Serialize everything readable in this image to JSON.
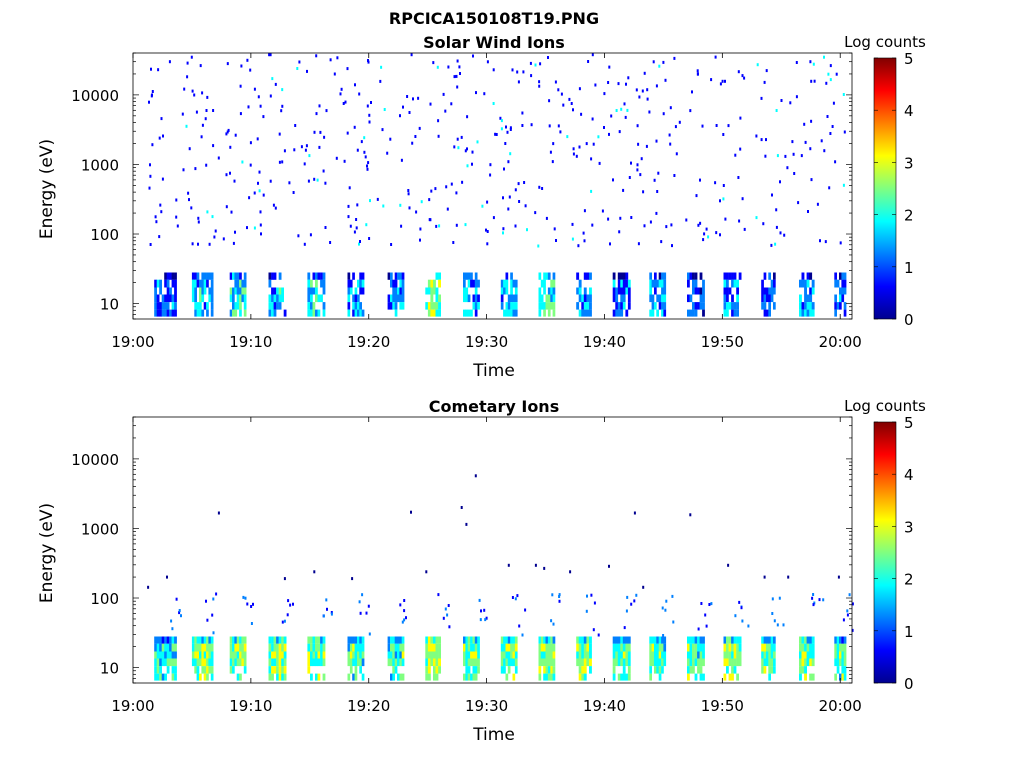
{
  "figure_title": "RPCICA150108T19.PNG",
  "colormap": [
    "#00008f",
    "#0000ff",
    "#0080ff",
    "#00ffff",
    "#80ff80",
    "#ffff00",
    "#ff8000",
    "#ff0000",
    "#800000"
  ],
  "chart_data": [
    {
      "type": "heatmap",
      "title": "Solar Wind Ions",
      "xlabel": "Time",
      "ylabel": "Energy (eV)",
      "x_ticks": [
        "19:00",
        "19:10",
        "19:20",
        "19:30",
        "19:40",
        "19:50",
        "20:00"
      ],
      "x_range_minutes": [
        0,
        61
      ],
      "y_scale": "log",
      "y_ticks": [
        "10",
        "100",
        "1000",
        "10000"
      ],
      "ylim": [
        6,
        40000
      ],
      "colorbar": {
        "label": "Log counts",
        "ticks": [
          "0",
          "1",
          "2",
          "3",
          "4",
          "5"
        ],
        "range": [
          0,
          5
        ]
      },
      "low_energy_bursts": [
        {
          "t": 1.8,
          "w": 1.9,
          "level": 1.0
        },
        {
          "t": 5.0,
          "w": 1.8,
          "level": 1.6
        },
        {
          "t": 8.2,
          "w": 1.4,
          "level": 1.8
        },
        {
          "t": 11.5,
          "w": 1.5,
          "level": 1.5
        },
        {
          "t": 14.8,
          "w": 1.5,
          "level": 1.7
        },
        {
          "t": 18.2,
          "w": 1.4,
          "level": 1.3
        },
        {
          "t": 21.6,
          "w": 1.4,
          "level": 1.5
        },
        {
          "t": 24.8,
          "w": 1.3,
          "level": 2.4
        },
        {
          "t": 28.0,
          "w": 1.4,
          "level": 1.4
        },
        {
          "t": 31.2,
          "w": 1.4,
          "level": 1.4
        },
        {
          "t": 34.4,
          "w": 1.4,
          "level": 2.0
        },
        {
          "t": 37.6,
          "w": 1.3,
          "level": 1.4
        },
        {
          "t": 40.7,
          "w": 1.5,
          "level": 1.0
        },
        {
          "t": 43.8,
          "w": 1.4,
          "level": 1.5
        },
        {
          "t": 47.0,
          "w": 1.5,
          "level": 0.9
        },
        {
          "t": 50.1,
          "w": 1.5,
          "level": 1.3
        },
        {
          "t": 53.3,
          "w": 1.2,
          "level": 1.0
        },
        {
          "t": 56.5,
          "w": 1.3,
          "level": 1.5
        },
        {
          "t": 59.5,
          "w": 1.0,
          "level": 1.3
        }
      ],
      "sparse_background": {
        "energy_min": 70,
        "energy_max": 40000,
        "typical_level": 0.4
      }
    },
    {
      "type": "heatmap",
      "title": "Cometary Ions",
      "xlabel": "Time",
      "ylabel": "Energy (eV)",
      "x_ticks": [
        "19:00",
        "19:10",
        "19:20",
        "19:30",
        "19:40",
        "19:50",
        "20:00"
      ],
      "x_range_minutes": [
        0,
        61
      ],
      "y_scale": "log",
      "y_ticks": [
        "10",
        "100",
        "1000",
        "10000"
      ],
      "ylim": [
        6,
        40000
      ],
      "colorbar": {
        "label": "Log counts",
        "ticks": [
          "0",
          "1",
          "2",
          "3",
          "4",
          "5"
        ],
        "range": [
          0,
          5
        ]
      },
      "low_energy_bursts": [
        {
          "t": 1.8,
          "w": 1.9,
          "level": 2.0
        },
        {
          "t": 5.0,
          "w": 1.8,
          "level": 2.5
        },
        {
          "t": 8.2,
          "w": 1.4,
          "level": 2.5
        },
        {
          "t": 11.5,
          "w": 1.5,
          "level": 2.4
        },
        {
          "t": 14.8,
          "w": 1.5,
          "level": 2.3
        },
        {
          "t": 18.2,
          "w": 1.4,
          "level": 2.2
        },
        {
          "t": 21.6,
          "w": 1.4,
          "level": 2.2
        },
        {
          "t": 24.8,
          "w": 1.3,
          "level": 2.8
        },
        {
          "t": 28.0,
          "w": 1.4,
          "level": 2.4
        },
        {
          "t": 31.2,
          "w": 1.4,
          "level": 2.4
        },
        {
          "t": 34.4,
          "w": 1.4,
          "level": 2.6
        },
        {
          "t": 37.6,
          "w": 1.3,
          "level": 2.3
        },
        {
          "t": 40.7,
          "w": 1.5,
          "level": 2.2
        },
        {
          "t": 43.8,
          "w": 1.4,
          "level": 2.2
        },
        {
          "t": 47.0,
          "w": 1.5,
          "level": 2.2
        },
        {
          "t": 50.1,
          "w": 1.5,
          "level": 2.6
        },
        {
          "t": 53.3,
          "w": 1.2,
          "level": 2.2
        },
        {
          "t": 56.5,
          "w": 1.3,
          "level": 2.5
        },
        {
          "t": 59.5,
          "w": 1.0,
          "level": 2.2
        }
      ],
      "sparse_points": [
        {
          "t": 1.2,
          "e": 150
        },
        {
          "t": 2.8,
          "e": 210
        },
        {
          "t": 7.2,
          "e": 1750
        },
        {
          "t": 12.8,
          "e": 200
        },
        {
          "t": 15.3,
          "e": 250
        },
        {
          "t": 18.5,
          "e": 200
        },
        {
          "t": 23.5,
          "e": 1800
        },
        {
          "t": 24.8,
          "e": 250
        },
        {
          "t": 27.8,
          "e": 2100
        },
        {
          "t": 28.2,
          "e": 1200
        },
        {
          "t": 29.0,
          "e": 6000
        },
        {
          "t": 31.8,
          "e": 310
        },
        {
          "t": 34.1,
          "e": 310
        },
        {
          "t": 34.8,
          "e": 280
        },
        {
          "t": 37.0,
          "e": 250
        },
        {
          "t": 40.3,
          "e": 300
        },
        {
          "t": 42.5,
          "e": 1750
        },
        {
          "t": 43.2,
          "e": 150
        },
        {
          "t": 47.2,
          "e": 1650
        },
        {
          "t": 50.4,
          "e": 310
        },
        {
          "t": 53.5,
          "e": 210
        },
        {
          "t": 55.5,
          "e": 210
        },
        {
          "t": 59.8,
          "e": 210
        }
      ]
    }
  ]
}
